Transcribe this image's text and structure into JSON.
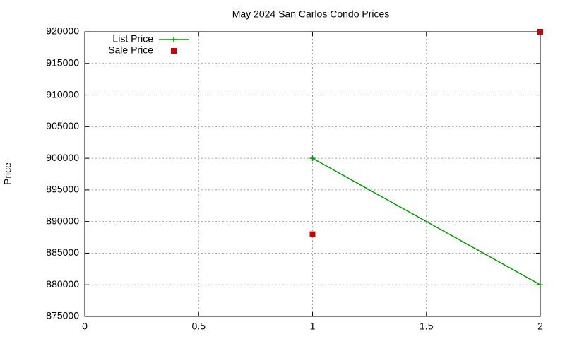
{
  "chart_data": {
    "type": "line",
    "title": "May 2024 San Carlos Condo Prices",
    "ylabel": "Price",
    "x": [
      1,
      2
    ],
    "series": [
      {
        "name": "List Price",
        "color": "#009900",
        "style": "linespoints",
        "values": [
          900000,
          880000
        ]
      },
      {
        "name": "Sale Price",
        "color": "#cc0000",
        "style": "points",
        "values": [
          888000,
          920000
        ]
      }
    ],
    "xlim": [
      0,
      2
    ],
    "xticks": [
      0,
      0.5,
      1,
      1.5,
      2
    ],
    "ylim": [
      875000,
      920000
    ],
    "yticks": [
      875000,
      880000,
      885000,
      890000,
      895000,
      900000,
      905000,
      910000,
      915000,
      920000
    ],
    "grid": true,
    "legend": "top-left"
  }
}
